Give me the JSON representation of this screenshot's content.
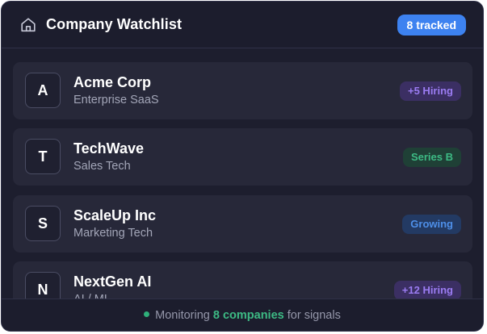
{
  "header": {
    "title": "Company Watchlist",
    "tracked_badge": "8 tracked",
    "icon": "home-icon"
  },
  "colors": {
    "background": "#1d1e2e",
    "card": "#272839",
    "accent_blue": "#3d82f0",
    "green": "#3dba84",
    "purple": "#9b7cf2"
  },
  "companies": [
    {
      "initial": "A",
      "name": "Acme Corp",
      "sector": "Enterprise SaaS",
      "tag": "+5 Hiring",
      "tag_color": "purple"
    },
    {
      "initial": "T",
      "name": "TechWave",
      "sector": "Sales Tech",
      "tag": "Series B",
      "tag_color": "green"
    },
    {
      "initial": "S",
      "name": "ScaleUp Inc",
      "sector": "Marketing Tech",
      "tag": "Growing",
      "tag_color": "blue"
    },
    {
      "initial": "N",
      "name": "NextGen AI",
      "sector": "AI / ML",
      "tag": "+12 Hiring",
      "tag_color": "purple"
    }
  ],
  "footer": {
    "prefix": "Monitoring",
    "highlight": "8 companies",
    "suffix": "for signals"
  }
}
